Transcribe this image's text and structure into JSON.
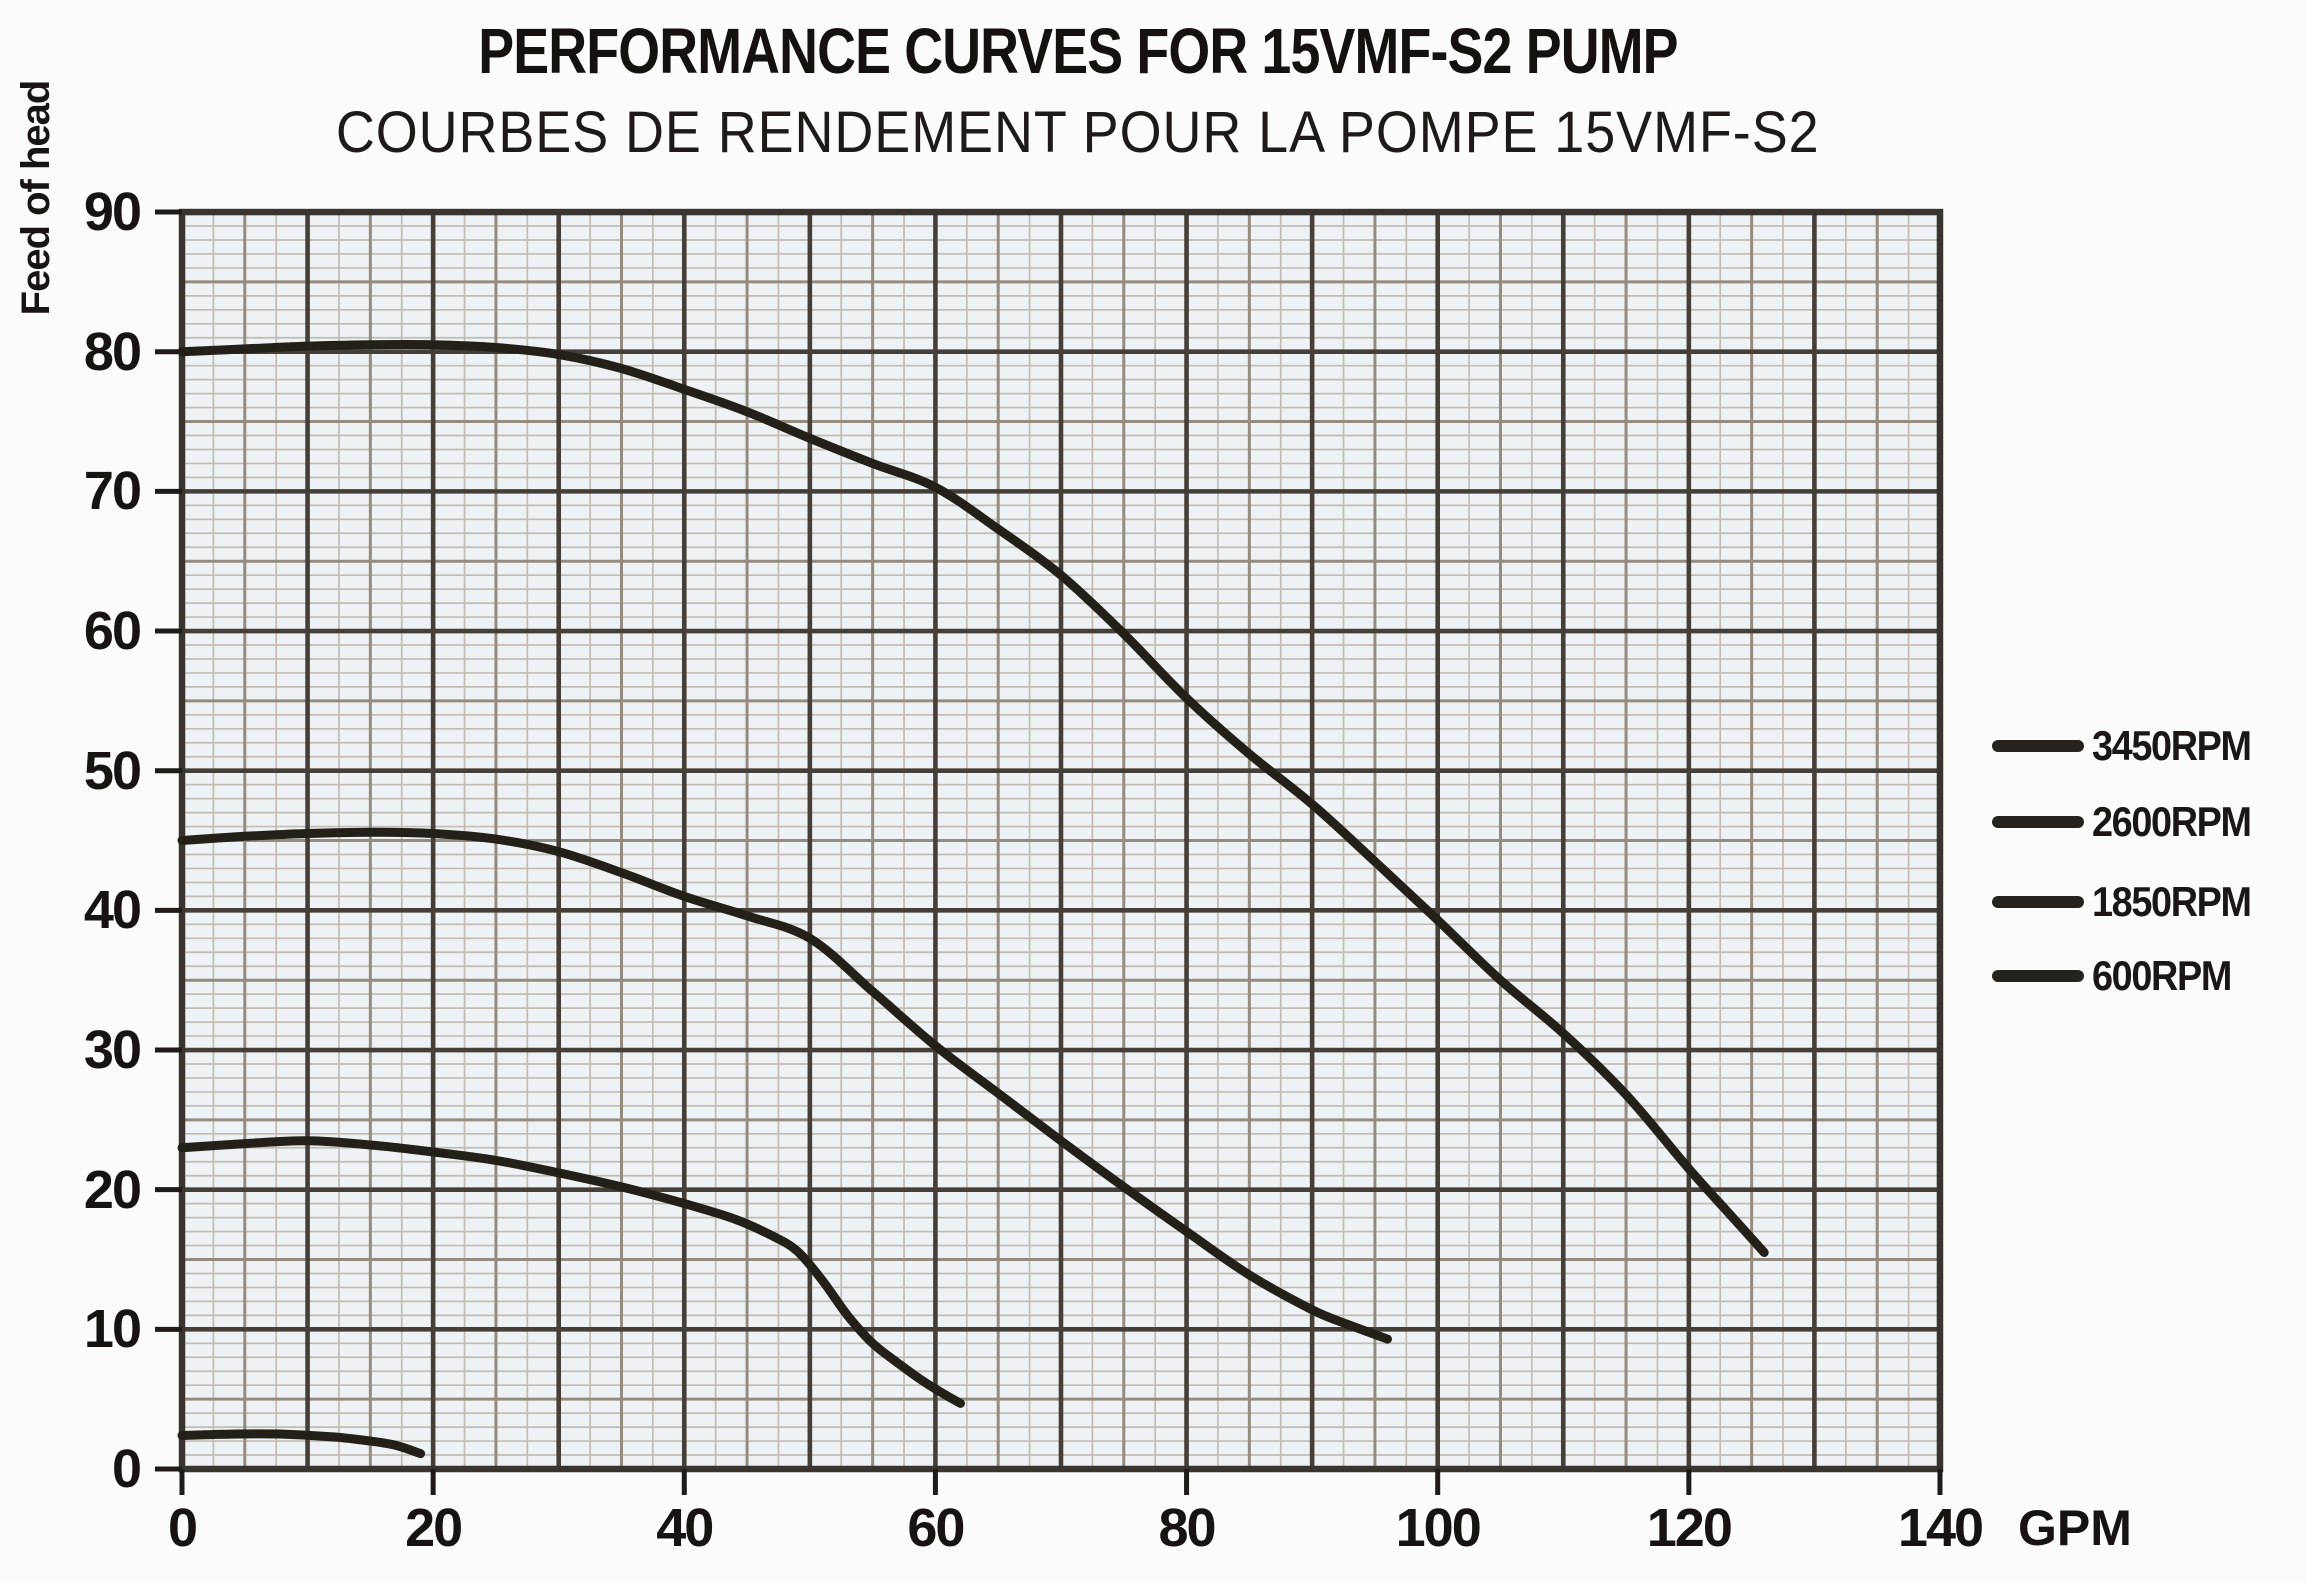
{
  "header": {
    "title_en": "PERFORMANCE CURVES FOR 15VMF-S2 PUMP",
    "title_fr": "COURBES DE RENDEMENT POUR LA POMPE 15VMF-S2"
  },
  "chart_data": {
    "type": "line",
    "title": "PERFORMANCE CURVES FOR 15VMF-S2 PUMP",
    "subtitle": "COURBES DE RENDEMENT POUR LA POMPE 15VMF-S2",
    "x_axis": {
      "unit": "GPM",
      "min": 0,
      "max": 140,
      "ticks": [
        0,
        20,
        40,
        60,
        80,
        100,
        120,
        140
      ]
    },
    "y_axis": {
      "title": "Feed of head",
      "min": 0,
      "max": 90,
      "ticks": [
        90,
        80,
        70,
        60,
        50,
        40,
        30,
        20,
        10,
        0
      ]
    },
    "grid": {
      "on": true,
      "fine_step_x_gpm": 2.5,
      "fine_step_y_ft": 1,
      "medium_step": 5,
      "major_step": 10
    },
    "legend_position": "right",
    "series": [
      {
        "name": "3450RPM",
        "points": [
          [
            0,
            80
          ],
          [
            5,
            80.2
          ],
          [
            10,
            80.4
          ],
          [
            15,
            80.5
          ],
          [
            20,
            80.5
          ],
          [
            25,
            80.3
          ],
          [
            30,
            79.8
          ],
          [
            35,
            78.8
          ],
          [
            40,
            77.3
          ],
          [
            45,
            75.7
          ],
          [
            50,
            73.8
          ],
          [
            55,
            72
          ],
          [
            60,
            70.3
          ],
          [
            65,
            67.3
          ],
          [
            70,
            64
          ],
          [
            75,
            59.8
          ],
          [
            80,
            55.2
          ],
          [
            85,
            51.2
          ],
          [
            90,
            47.6
          ],
          [
            95,
            43.5
          ],
          [
            100,
            39.3
          ],
          [
            105,
            35
          ],
          [
            110,
            31.2
          ],
          [
            115,
            26.8
          ],
          [
            120,
            21.5
          ],
          [
            123,
            18.5
          ],
          [
            126,
            15.5
          ]
        ]
      },
      {
        "name": "2600RPM",
        "points": [
          [
            0,
            45
          ],
          [
            5,
            45.3
          ],
          [
            10,
            45.5
          ],
          [
            15,
            45.6
          ],
          [
            20,
            45.5
          ],
          [
            25,
            45.1
          ],
          [
            30,
            44.2
          ],
          [
            35,
            42.7
          ],
          [
            40,
            41
          ],
          [
            45,
            39.6
          ],
          [
            50,
            38
          ],
          [
            55,
            34.2
          ],
          [
            60,
            30.3
          ],
          [
            65,
            26.9
          ],
          [
            70,
            23.5
          ],
          [
            75,
            20.2
          ],
          [
            80,
            17
          ],
          [
            85,
            13.9
          ],
          [
            90,
            11.4
          ],
          [
            93,
            10.3
          ],
          [
            96,
            9.3
          ]
        ]
      },
      {
        "name": "1850RPM",
        "points": [
          [
            0,
            23
          ],
          [
            5,
            23.3
          ],
          [
            10,
            23.5
          ],
          [
            15,
            23.2
          ],
          [
            20,
            22.7
          ],
          [
            25,
            22.1
          ],
          [
            30,
            21.2
          ],
          [
            35,
            20.2
          ],
          [
            40,
            19
          ],
          [
            44,
            17.9
          ],
          [
            47,
            16.7
          ],
          [
            49,
            15.6
          ],
          [
            51,
            13.5
          ],
          [
            53,
            11
          ],
          [
            55,
            9
          ],
          [
            57,
            7.6
          ],
          [
            59,
            6.3
          ],
          [
            61,
            5.2
          ],
          [
            62,
            4.7
          ]
        ]
      },
      {
        "name": "600RPM",
        "points": [
          [
            0,
            2.4
          ],
          [
            4,
            2.5
          ],
          [
            8,
            2.5
          ],
          [
            12,
            2.3
          ],
          [
            15,
            2
          ],
          [
            17,
            1.7
          ],
          [
            19,
            1.1
          ]
        ]
      }
    ],
    "colors": {
      "curve": "#232019",
      "plot_background": "#eef2f4",
      "grid_fine": "#c2bcb4",
      "grid_medium": "#948b81",
      "grid_major": "#453f39",
      "border": "#39342f",
      "text": "#131110"
    }
  }
}
